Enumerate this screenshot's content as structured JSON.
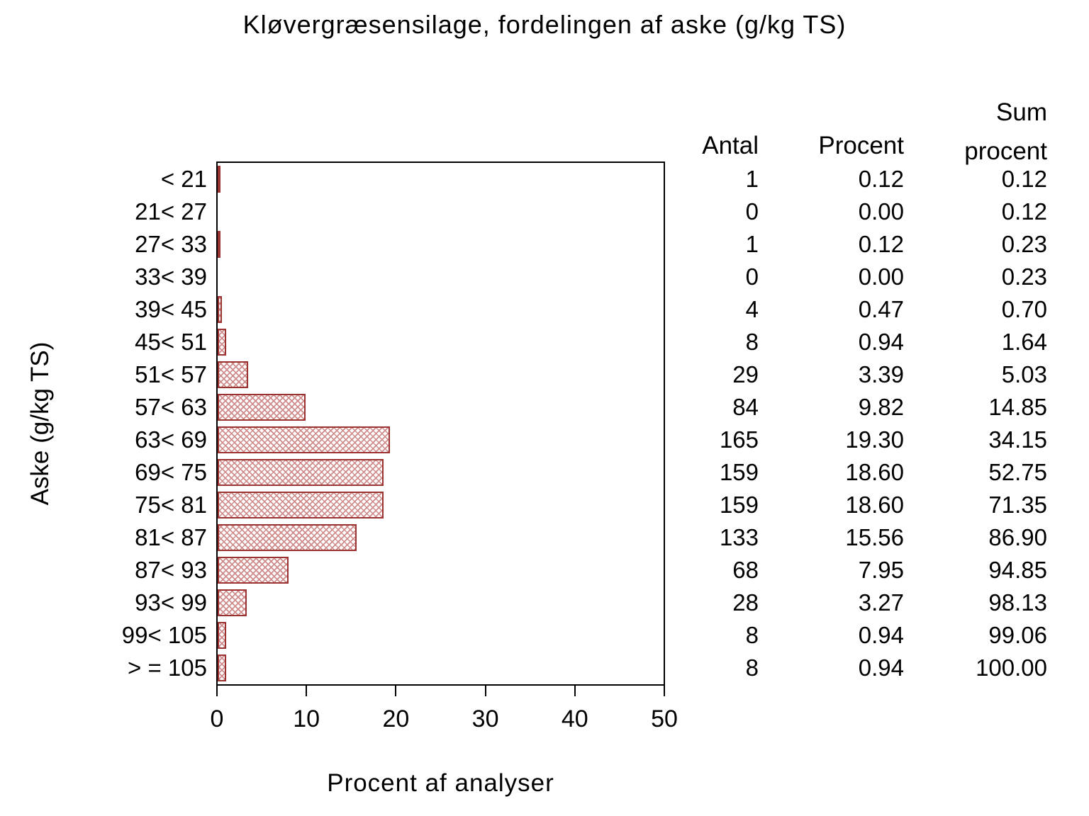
{
  "chart_data": {
    "type": "bar",
    "orientation": "horizontal",
    "title": "Kløvergræsensilage,  fordelingen  af  aske  (g/kg  TS)",
    "xlabel": "Procent  af  analyser",
    "ylabel": "Aske  (g/kg  TS)",
    "xlim": [
      0,
      50
    ],
    "x_ticks": [
      0,
      10,
      20,
      30,
      40,
      50
    ],
    "grid": false,
    "bar_metric": "Procent",
    "categories": [
      "< 21",
      "21< 27",
      "27< 33",
      "33< 39",
      "39< 45",
      "45< 51",
      "51< 57",
      "57< 63",
      "63< 69",
      "69< 75",
      "75< 81",
      "81< 87",
      "87< 93",
      "93< 99",
      "99< 105",
      "> = 105"
    ],
    "series": [
      {
        "name": "Antal",
        "values": [
          1,
          0,
          1,
          0,
          4,
          8,
          29,
          84,
          165,
          159,
          159,
          133,
          68,
          28,
          8,
          8
        ]
      },
      {
        "name": "Procent",
        "values": [
          "0.12",
          "0.00",
          "0.12",
          "0.00",
          "0.47",
          "0.94",
          "3.39",
          "9.82",
          "19.30",
          "18.60",
          "18.60",
          "15.56",
          "7.95",
          "3.27",
          "0.94",
          "0.94"
        ]
      },
      {
        "name": "Sum procent",
        "values": [
          "0.12",
          "0.12",
          "0.23",
          "0.23",
          "0.70",
          "1.64",
          "5.03",
          "14.85",
          "34.15",
          "52.75",
          "71.35",
          "86.90",
          "94.85",
          "98.13",
          "99.06",
          "100.00"
        ]
      }
    ]
  },
  "table": {
    "headers": {
      "antal": "Antal",
      "procent": "Procent",
      "sum_line1": "Sum",
      "sum_line2": "procent"
    }
  },
  "colors": {
    "bar_hatch": "#cf8a8a",
    "bar_border": "#9c3333",
    "axis": "#000000",
    "background": "#ffffff",
    "text": "#000000"
  }
}
